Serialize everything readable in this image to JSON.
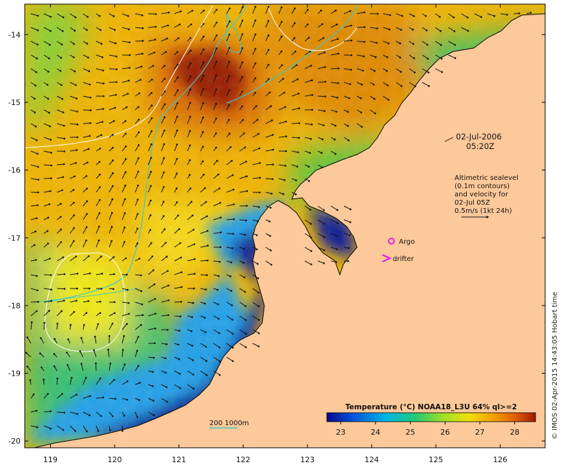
{
  "map": {
    "x_axis": {
      "ticks": [
        "119",
        "120",
        "121",
        "122",
        "123",
        "124",
        "125",
        "126"
      ],
      "values": [
        119,
        120,
        121,
        122,
        123,
        124,
        125,
        126
      ],
      "range": [
        118.6,
        126.7
      ]
    },
    "y_axis": {
      "ticks": [
        "-14",
        "-15",
        "-16",
        "-17",
        "-18",
        "-19",
        "-20"
      ],
      "values": [
        -14,
        -15,
        -16,
        -17,
        -18,
        -19,
        -20
      ],
      "range": [
        -13.55,
        -20.1
      ]
    },
    "timestamp": {
      "date": "02-Jul-2006",
      "time": "05:20Z"
    },
    "altimetry_note": [
      "Altimetric sealevel",
      "(0.1m contours)",
      "and velocity for",
      "02-Jul 05Z",
      "0.5m/s (1kt 24h)"
    ],
    "legend": {
      "argo_label": "Argo",
      "drifter_label": "drifter",
      "argo_color": "#e020e0",
      "drifter_color": "#e020e0"
    },
    "bathymetry_label": "200  1000m",
    "bathymetry_color": "#40c8c8",
    "land_color": "#fdc99a",
    "colorbar": {
      "title": "Temperature (°C) NOAA18_L3U 64% ql>=2",
      "ticks": [
        "23",
        "24",
        "25",
        "26",
        "27",
        "28"
      ],
      "values": [
        23,
        24,
        25,
        26,
        27,
        28
      ],
      "range": [
        22.6,
        28.6
      ],
      "colors": [
        "#0a0a8c",
        "#0050d8",
        "#00b4e8",
        "#20c87a",
        "#a0e020",
        "#f0e010",
        "#f0a000",
        "#e06000",
        "#a01800"
      ]
    },
    "credit": "© IMOS 02-Apr-2015 14:43:05 Hobart time"
  }
}
